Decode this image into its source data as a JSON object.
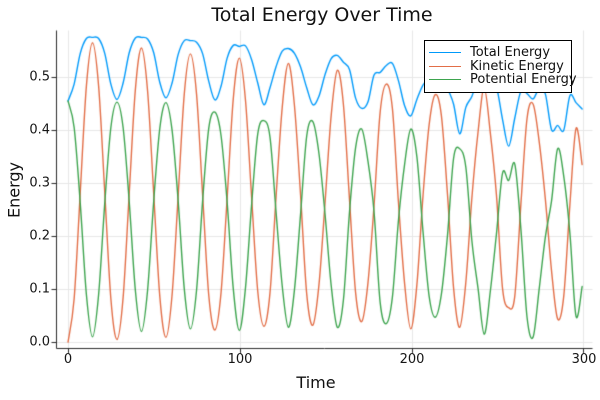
{
  "title": "Total Energy Over Time",
  "axes": {
    "xlabel": "Time",
    "ylabel": "Energy",
    "xticks": [
      "0",
      "100",
      "200",
      "300"
    ],
    "yticks": [
      "0.0",
      "0.1",
      "0.2",
      "0.3",
      "0.4",
      "0.5"
    ]
  },
  "legend": {
    "items": [
      {
        "label": "Total Energy",
        "color": "#009afa"
      },
      {
        "label": "Kinetic Energy",
        "color": "#e26e47"
      },
      {
        "label": "Potential Energy",
        "color": "#3da44e"
      }
    ]
  },
  "chart_data": {
    "type": "line",
    "title": "Total Energy Over Time",
    "xlabel": "Time",
    "ylabel": "Energy",
    "xlim": [
      -7,
      305
    ],
    "ylim": [
      -0.011,
      0.589
    ],
    "xticks": [
      0,
      100,
      200,
      300
    ],
    "yticks": [
      0.0,
      0.1,
      0.2,
      0.3,
      0.4,
      0.5
    ],
    "grid": true,
    "grid_color": "#e7e7e7",
    "axis_color": "#2b2b2b",
    "legend_position": "top-right",
    "t_start": 0,
    "t_step": 3.5625,
    "series": [
      {
        "name": "Total Energy",
        "color": "#009afa",
        "values": [
          0.455,
          0.487,
          0.545,
          0.573,
          0.575,
          0.573,
          0.545,
          0.487,
          0.458,
          0.489,
          0.546,
          0.574,
          0.575,
          0.572,
          0.546,
          0.49,
          0.461,
          0.489,
          0.543,
          0.569,
          0.569,
          0.566,
          0.544,
          0.492,
          0.457,
          0.483,
          0.536,
          0.56,
          0.558,
          0.559,
          0.533,
          0.489,
          0.448,
          0.48,
          0.52,
          0.549,
          0.554,
          0.545,
          0.519,
          0.48,
          0.448,
          0.464,
          0.505,
          0.535,
          0.541,
          0.528,
          0.514,
          0.46,
          0.441,
          0.453,
          0.504,
          0.509,
          0.522,
          0.526,
          0.493,
          0.446,
          0.427,
          0.458,
          0.485,
          0.497,
          0.514,
          0.518,
          0.48,
          0.449,
          0.393,
          0.443,
          0.464,
          0.498,
          0.495,
          0.491,
          0.482,
          0.42,
          0.37,
          0.423,
          0.474,
          0.469,
          0.459,
          0.479,
          0.468,
          0.401,
          0.409,
          0.4,
          0.465,
          0.452,
          0.44
        ]
      },
      {
        "name": "Kinetic Energy",
        "color": "#e26e47",
        "values": [
          0.0,
          0.082,
          0.283,
          0.483,
          0.565,
          0.483,
          0.283,
          0.082,
          0.005,
          0.084,
          0.281,
          0.476,
          0.555,
          0.474,
          0.28,
          0.086,
          0.009,
          0.089,
          0.277,
          0.469,
          0.544,
          0.468,
          0.276,
          0.088,
          0.023,
          0.093,
          0.272,
          0.459,
          0.536,
          0.456,
          0.273,
          0.096,
          0.03,
          0.093,
          0.276,
          0.443,
          0.526,
          0.446,
          0.277,
          0.091,
          0.032,
          0.108,
          0.264,
          0.428,
          0.513,
          0.448,
          0.267,
          0.092,
          0.039,
          0.111,
          0.258,
          0.434,
          0.487,
          0.441,
          0.262,
          0.11,
          0.025,
          0.108,
          0.276,
          0.41,
          0.467,
          0.428,
          0.279,
          0.102,
          0.028,
          0.113,
          0.274,
          0.397,
          0.48,
          0.395,
          0.278,
          0.101,
          0.065,
          0.087,
          0.261,
          0.422,
          0.449,
          0.377,
          0.269,
          0.135,
          0.044,
          0.087,
          0.259,
          0.403,
          0.335
        ]
      },
      {
        "name": "Potential Energy",
        "color": "#3da44e",
        "values": [
          0.455,
          0.405,
          0.262,
          0.09,
          0.01,
          0.09,
          0.262,
          0.405,
          0.453,
          0.405,
          0.265,
          0.098,
          0.02,
          0.098,
          0.266,
          0.404,
          0.452,
          0.4,
          0.266,
          0.1,
          0.025,
          0.098,
          0.268,
          0.404,
          0.434,
          0.39,
          0.264,
          0.101,
          0.022,
          0.103,
          0.26,
          0.393,
          0.418,
          0.387,
          0.244,
          0.106,
          0.028,
          0.099,
          0.242,
          0.389,
          0.416,
          0.356,
          0.241,
          0.107,
          0.028,
          0.08,
          0.247,
          0.368,
          0.402,
          0.342,
          0.246,
          0.075,
          0.035,
          0.085,
          0.231,
          0.336,
          0.402,
          0.35,
          0.209,
          0.087,
          0.047,
          0.09,
          0.201,
          0.347,
          0.365,
          0.33,
          0.19,
          0.101,
          0.015,
          0.096,
          0.204,
          0.319,
          0.305,
          0.336,
          0.213,
          0.047,
          0.01,
          0.102,
          0.199,
          0.266,
          0.365,
          0.313,
          0.206,
          0.049,
          0.105
        ]
      }
    ]
  }
}
